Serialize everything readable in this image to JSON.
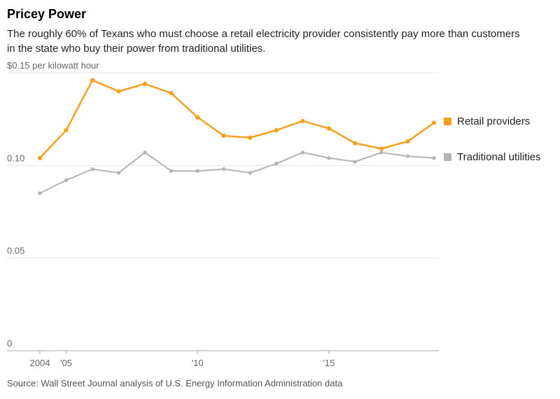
{
  "header": {
    "title": "Pricey Power",
    "subtitle": "The roughly 60% of Texans who must choose a retail electricity provider consistently pay more than customers in the state who buy their power from traditional utilities."
  },
  "source": "Source: Wall Street Journal analysis of U.S. Energy Information Administration data",
  "colors": {
    "retail": "#f7a01e",
    "traditional": "#b4b4b4",
    "gridline": "#e4e4e4",
    "axis": "#a9a9a9",
    "tick_text": "#666666"
  },
  "chart_data": {
    "type": "line",
    "x": [
      2004,
      2005,
      2006,
      2007,
      2008,
      2009,
      2010,
      2011,
      2012,
      2013,
      2014,
      2015,
      2016,
      2017,
      2018,
      2019
    ],
    "series": [
      {
        "name": "Retail providers",
        "color": "#f7a01e",
        "values": [
          0.104,
          0.119,
          0.146,
          0.14,
          0.144,
          0.139,
          0.126,
          0.116,
          0.115,
          0.119,
          0.124,
          0.12,
          0.112,
          0.109,
          0.113,
          0.123
        ]
      },
      {
        "name": "Traditional utilities",
        "color": "#b4b4b4",
        "values": [
          0.085,
          0.092,
          0.098,
          0.096,
          0.107,
          0.097,
          0.097,
          0.098,
          0.096,
          0.101,
          0.107,
          0.104,
          0.102,
          0.107,
          0.105,
          0.104
        ]
      }
    ],
    "ylim": [
      0,
      0.15
    ],
    "yticks": [
      0,
      0.05,
      0.1,
      0.15
    ],
    "ytick_labels": [
      "0",
      "0.05",
      "0.10",
      "$0.15 per kilowatt hour"
    ],
    "xticks": [
      2004,
      2005,
      2010,
      2015
    ],
    "xtick_labels": [
      "2004",
      "'05",
      "'10",
      "'15"
    ],
    "grid": true,
    "legend_position": "right"
  }
}
